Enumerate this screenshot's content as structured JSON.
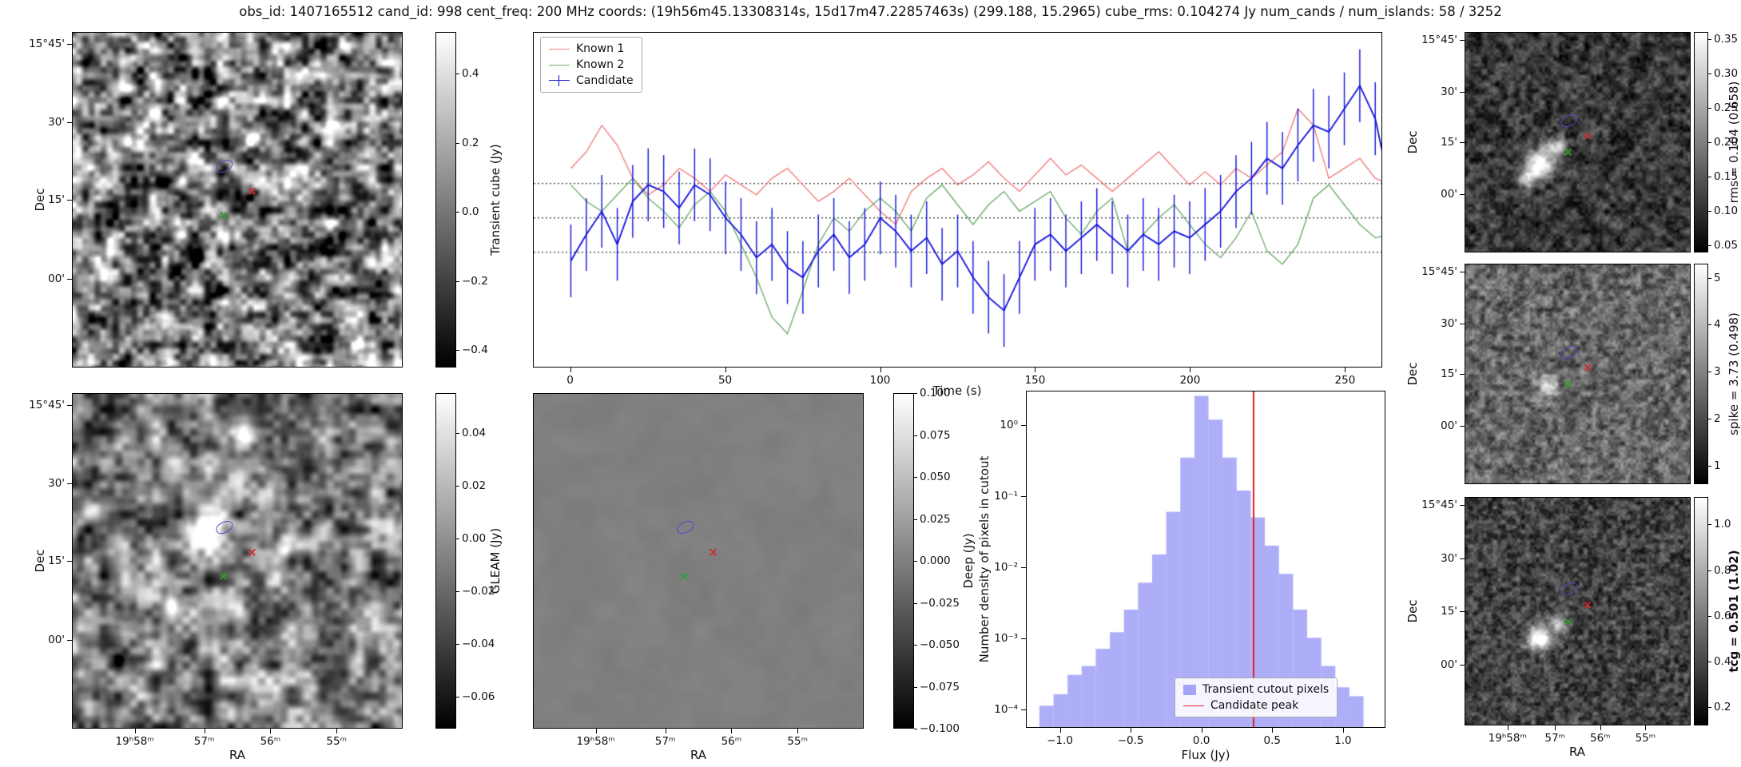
{
  "title": "obs_id: 1407165512 cand_id: 998 cent_freq: 200 MHz coords: (19h56m45.13308314s, 15d17m47.22857463s) (299.188, 15.2965) cube_rms: 0.104274 Jy num_cands / num_islands: 58 / 3252",
  "colors": {
    "known1": "#f08080",
    "known2": "#6fae6f",
    "candidate": "#0f0fdd",
    "hist_fill": "#6c6cf2",
    "hist_fill_alpha": 0.55,
    "peak_line": "#dd2222",
    "marker_red": "#d62728",
    "marker_green": "#2ca02c",
    "contour_blue": "#4b4bcf"
  },
  "axes": {
    "dec_label": "Dec",
    "ra_label": "RA",
    "dec_ticks": [
      "15°45'",
      "30'",
      "15'",
      "00'"
    ],
    "ra_ticks": [
      "19ʰ58ᵐ",
      "57ᵐ",
      "56ᵐ",
      "55ᵐ"
    ]
  },
  "colorbars": {
    "transient": {
      "label": "Transient cube (Jy)",
      "ticks": [
        "0.4",
        "0.2",
        "0.0",
        "−0.2",
        "−0.4"
      ]
    },
    "gleam": {
      "label": "GLEAM (Jy)",
      "ticks": [
        "0.04",
        "0.02",
        "0.00",
        "−0.02",
        "−0.04",
        "−0.06"
      ]
    },
    "deep": {
      "label": "Deep (Jy)",
      "ticks": [
        "0.100",
        "0.075",
        "0.050",
        "0.025",
        "0.000",
        "−0.025",
        "−0.050",
        "−0.075",
        "−0.100"
      ]
    },
    "rms": {
      "label": "rms = 0.104 (0.658)",
      "ticks": [
        "0.35",
        "0.30",
        "0.25",
        "0.20",
        "0.15",
        "0.10",
        "0.05"
      ]
    },
    "spike": {
      "label": "spike = 3.73 (0.498)",
      "ticks": [
        "5",
        "4",
        "3",
        "2",
        "1"
      ]
    },
    "tcg": {
      "label": "tcg = 0.501 (1.02)",
      "ticks": [
        "1.0",
        "0.8",
        "0.6",
        "0.4",
        "0.2"
      ]
    }
  },
  "lightcurve": {
    "xlabel": "Time (s)",
    "xticks": [
      "0",
      "50",
      "100",
      "150",
      "200",
      "250"
    ],
    "legend": [
      "Known 1",
      "Known 2",
      "Candidate"
    ]
  },
  "histogram": {
    "xlabel": "Flux (Jy)",
    "ylabel": "Number density of pixels in cutout",
    "xticks": [
      "−1.0",
      "−0.5",
      "0.0",
      "0.5",
      "1.0"
    ],
    "yticks": [
      "10⁰",
      "10⁻¹",
      "10⁻²",
      "10⁻³",
      "10⁻⁴"
    ],
    "legend": [
      "Transient cutout pixels",
      "Candidate peak"
    ]
  },
  "chart_data": [
    {
      "type": "line",
      "name": "candidate_lightcurve",
      "xlabel": "Time (s)",
      "ylabel": "",
      "xlim": [
        -12,
        262
      ],
      "ylim": [
        -0.45,
        0.56
      ],
      "hlines": [
        0.104,
        0.0,
        -0.104
      ],
      "legend_position": "upper left",
      "x": [
        0,
        5,
        10,
        15,
        20,
        25,
        30,
        35,
        40,
        45,
        50,
        55,
        60,
        65,
        70,
        75,
        80,
        85,
        90,
        95,
        100,
        105,
        110,
        115,
        120,
        125,
        130,
        135,
        140,
        145,
        150,
        155,
        160,
        165,
        170,
        175,
        180,
        185,
        190,
        195,
        200,
        205,
        210,
        215,
        220,
        225,
        230,
        235,
        240,
        245,
        250,
        255,
        260,
        265
      ],
      "series": [
        {
          "name": "Known 1",
          "color": "#f08080",
          "values": [
            0.15,
            0.2,
            0.28,
            0.22,
            0.12,
            0.07,
            0.1,
            0.15,
            0.12,
            0.08,
            0.13,
            0.1,
            0.07,
            0.12,
            0.15,
            0.1,
            0.05,
            0.08,
            0.12,
            0.07,
            0.02,
            -0.02,
            0.08,
            0.12,
            0.15,
            0.1,
            0.13,
            0.17,
            0.12,
            0.08,
            0.13,
            0.18,
            0.13,
            0.16,
            0.12,
            0.08,
            0.12,
            0.16,
            0.2,
            0.15,
            0.1,
            0.14,
            0.1,
            0.15,
            0.12,
            0.16,
            0.2,
            0.33,
            0.28,
            0.12,
            0.15,
            0.18,
            0.12,
            0.1
          ]
        },
        {
          "name": "Known 2",
          "color": "#6fae6f",
          "values": [
            0.1,
            0.05,
            0.02,
            0.07,
            0.12,
            0.06,
            0.02,
            -0.03,
            0.04,
            0.08,
            0.02,
            -0.08,
            -0.18,
            -0.3,
            -0.35,
            -0.22,
            -0.08,
            0.0,
            -0.04,
            0.02,
            0.06,
            0.02,
            -0.04,
            0.06,
            0.1,
            0.04,
            -0.02,
            0.04,
            0.08,
            0.02,
            0.05,
            0.08,
            0.0,
            -0.05,
            0.02,
            0.06,
            -0.1,
            -0.05,
            0.0,
            0.04,
            -0.02,
            -0.08,
            -0.12,
            -0.06,
            0.02,
            -0.1,
            -0.14,
            -0.08,
            0.06,
            0.1,
            0.04,
            -0.02,
            -0.06,
            -0.05
          ]
        },
        {
          "name": "Candidate",
          "color": "#0f0fdd",
          "yerr": 0.11,
          "values": [
            -0.13,
            -0.05,
            0.02,
            -0.08,
            0.05,
            0.1,
            0.08,
            0.03,
            0.1,
            0.07,
            0.0,
            -0.05,
            -0.12,
            -0.08,
            -0.15,
            -0.18,
            -0.1,
            -0.05,
            -0.12,
            -0.08,
            0.0,
            -0.04,
            -0.1,
            -0.06,
            -0.14,
            -0.1,
            -0.18,
            -0.24,
            -0.28,
            -0.18,
            -0.08,
            -0.05,
            -0.1,
            -0.06,
            -0.02,
            -0.06,
            -0.1,
            -0.05,
            -0.08,
            -0.04,
            -0.06,
            -0.02,
            0.02,
            0.08,
            0.12,
            0.18,
            0.15,
            0.22,
            0.28,
            0.26,
            0.33,
            0.4,
            0.3,
            0.08
          ]
        }
      ]
    },
    {
      "type": "bar",
      "name": "cutout_pixel_histogram",
      "xlabel": "Flux (Jy)",
      "ylabel": "Number density of pixels in cutout",
      "yscale": "log",
      "xlim": [
        -1.24,
        1.3
      ],
      "ylim": [
        5.5e-05,
        3.0
      ],
      "bin_width": 0.1,
      "bin_centers": [
        -1.1,
        -1.0,
        -0.9,
        -0.8,
        -0.7,
        -0.6,
        -0.5,
        -0.4,
        -0.3,
        -0.2,
        -0.1,
        0.0,
        0.1,
        0.2,
        0.3,
        0.4,
        0.5,
        0.6,
        0.7,
        0.8,
        0.9,
        1.0,
        1.1
      ],
      "values": [
        0.00011,
        0.00016,
        0.0003,
        0.0004,
        0.0007,
        0.0012,
        0.0025,
        0.006,
        0.015,
        0.06,
        0.35,
        2.6,
        1.2,
        0.35,
        0.12,
        0.05,
        0.02,
        0.008,
        0.0025,
        0.001,
        0.0004,
        0.0002,
        0.00015
      ],
      "vline": {
        "x": 0.37,
        "label": "Candidate peak",
        "color": "#dd2222"
      },
      "legend_position": "lower right"
    },
    {
      "type": "heatmap",
      "name": "sky_cutout_maps",
      "x_ticks": [
        "19h58m",
        "57m",
        "56m",
        "55m"
      ],
      "y_ticks": [
        "15°45'",
        "30'",
        "15'",
        "00'"
      ],
      "panels": [
        {
          "name": "transient_cube",
          "colorbar_label": "Transient cube (Jy)",
          "colorbar_ticks": [
            0.4,
            0.2,
            0.0,
            -0.2,
            -0.4
          ]
        },
        {
          "name": "gleam",
          "colorbar_label": "GLEAM (Jy)",
          "colorbar_ticks": [
            0.04,
            0.02,
            0.0,
            -0.02,
            -0.04,
            -0.06
          ]
        },
        {
          "name": "deep",
          "colorbar_label": "Deep (Jy)",
          "colorbar_ticks": [
            0.1,
            0.075,
            0.05,
            0.025,
            0.0,
            -0.025,
            -0.05,
            -0.075,
            -0.1
          ]
        },
        {
          "name": "rms",
          "colorbar_label": "rms = 0.104 (0.658)",
          "colorbar_ticks": [
            0.35,
            0.3,
            0.25,
            0.2,
            0.15,
            0.1,
            0.05
          ]
        },
        {
          "name": "spike",
          "colorbar_label": "spike = 3.73 (0.498)",
          "colorbar_ticks": [
            5,
            4,
            3,
            2,
            1
          ]
        },
        {
          "name": "tcg",
          "colorbar_label": "tcg = 0.501 (1.02)",
          "colorbar_ticks": [
            1.0,
            0.8,
            0.6,
            0.4,
            0.2
          ]
        }
      ]
    }
  ]
}
